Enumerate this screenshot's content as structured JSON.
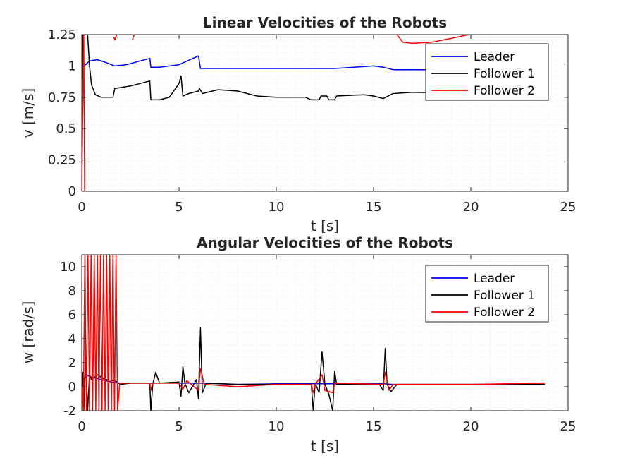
{
  "chart_data": [
    {
      "type": "line",
      "title": "Linear Velocities of the Robots",
      "xlabel": "t [s]",
      "ylabel": "v [m/s]",
      "xlim": [
        0,
        25
      ],
      "ylim": [
        0,
        1.25
      ],
      "xticks": [
        "0",
        "5",
        "10",
        "15",
        "20",
        "25"
      ],
      "yticks": [
        "0",
        "0.25",
        "0.5",
        "0.75",
        "1",
        "1.25"
      ],
      "grid": true,
      "legend": "top-right",
      "series": [
        {
          "name": "Leader",
          "color": "#0000ff",
          "points": [
            [
              0,
              0.6
            ],
            [
              0.05,
              1.0
            ],
            [
              0.1,
              1.02
            ],
            [
              0.2,
              1.01
            ],
            [
              0.4,
              1.04
            ],
            [
              0.8,
              1.05
            ],
            [
              1.2,
              1.03
            ],
            [
              1.7,
              1.0
            ],
            [
              2.3,
              1.01
            ],
            [
              3.0,
              1.04
            ],
            [
              3.5,
              1.06
            ],
            [
              3.55,
              0.99
            ],
            [
              4.0,
              0.99
            ],
            [
              5.0,
              1.01
            ],
            [
              6.0,
              1.08
            ],
            [
              6.1,
              0.98
            ],
            [
              8,
              0.98
            ],
            [
              10,
              0.98
            ],
            [
              12,
              0.98
            ],
            [
              13,
              0.98
            ],
            [
              14,
              0.99
            ],
            [
              15,
              1.0
            ],
            [
              15.5,
              0.99
            ],
            [
              16,
              0.97
            ],
            [
              20,
              0.97
            ]
          ]
        },
        {
          "name": "Follower 1",
          "color": "#000000",
          "points": [
            [
              0,
              0
            ],
            [
              0.05,
              1.25
            ],
            [
              0.3,
              1.25
            ],
            [
              0.4,
              1.0
            ],
            [
              0.5,
              0.85
            ],
            [
              0.7,
              0.77
            ],
            [
              1.0,
              0.75
            ],
            [
              1.6,
              0.75
            ],
            [
              1.7,
              0.82
            ],
            [
              2.5,
              0.84
            ],
            [
              3.5,
              0.88
            ],
            [
              3.55,
              0.73
            ],
            [
              4.0,
              0.73
            ],
            [
              4.5,
              0.75
            ],
            [
              5.0,
              0.86
            ],
            [
              5.1,
              0.92
            ],
            [
              5.2,
              0.76
            ],
            [
              5.5,
              0.78
            ],
            [
              6.0,
              0.8
            ],
            [
              6.05,
              0.82
            ],
            [
              6.2,
              0.78
            ],
            [
              7.0,
              0.81
            ],
            [
              8.0,
              0.8
            ],
            [
              8.5,
              0.78
            ],
            [
              9.0,
              0.76
            ],
            [
              10,
              0.75
            ],
            [
              11.5,
              0.75
            ],
            [
              11.8,
              0.73
            ],
            [
              12.2,
              0.73
            ],
            [
              12.3,
              0.76
            ],
            [
              12.6,
              0.76
            ],
            [
              12.7,
              0.73
            ],
            [
              13,
              0.73
            ],
            [
              13.1,
              0.76
            ],
            [
              14.5,
              0.77
            ],
            [
              15,
              0.76
            ],
            [
              15.5,
              0.74
            ],
            [
              16,
              0.78
            ],
            [
              17,
              0.79
            ],
            [
              20,
              0.78
            ],
            [
              22,
              0.73
            ],
            [
              23.8,
              0.73
            ]
          ]
        },
        {
          "name": "Follower 2",
          "color": "#ff0000",
          "points": [
            [
              0,
              0
            ],
            [
              0.1,
              1.25
            ],
            [
              0.15,
              0
            ]
          ]
        },
        {
          "name": "",
          "color": "#ff0000",
          "points": [
            [
              1.65,
              1.23
            ],
            [
              1.7,
              1.21
            ],
            [
              1.8,
              1.25
            ]
          ]
        },
        {
          "name": "",
          "color": "#ff0000",
          "points": [
            [
              2.6,
              1.21
            ],
            [
              2.7,
              1.25
            ]
          ]
        },
        {
          "name": "",
          "color": "#ff0000",
          "points": [
            [
              16.2,
              1.25
            ],
            [
              16.5,
              1.19
            ],
            [
              17.0,
              1.18
            ],
            [
              18.0,
              1.19
            ],
            [
              19.0,
              1.22
            ],
            [
              19.9,
              1.25
            ]
          ]
        }
      ]
    },
    {
      "type": "line",
      "title": "Angular Velocities of the Robots",
      "xlabel": "t [s]",
      "ylabel": "w [rad/s]",
      "xlim": [
        0,
        25
      ],
      "ylim": [
        -2,
        11
      ],
      "xticks": [
        "0",
        "5",
        "10",
        "15",
        "20",
        "25"
      ],
      "yticks": [
        "-2",
        "0",
        "2",
        "4",
        "6",
        "8",
        "10"
      ],
      "grid": true,
      "legend": "top-right",
      "series": [
        {
          "name": "Leader",
          "color": "#0000ff",
          "points": [
            [
              0,
              0
            ],
            [
              0.2,
              1.0
            ],
            [
              0.5,
              0.8
            ],
            [
              1.0,
              0.6
            ],
            [
              1.5,
              0.4
            ],
            [
              2.0,
              0.3
            ],
            [
              3.5,
              0.3
            ],
            [
              3.6,
              0.3
            ],
            [
              5,
              0.3
            ],
            [
              6,
              0.3
            ],
            [
              6.2,
              0.3
            ],
            [
              8,
              0.2
            ],
            [
              10,
              0.25
            ],
            [
              12,
              0.25
            ],
            [
              14,
              0.25
            ],
            [
              15.5,
              0.25
            ],
            [
              16,
              0.2
            ],
            [
              20,
              0.2
            ],
            [
              23.8,
              0.2
            ]
          ]
        },
        {
          "name": "Follower 1",
          "color": "#000000",
          "points": [
            [
              0,
              0
            ],
            [
              0.05,
              1.2
            ],
            [
              0.1,
              -2
            ],
            [
              0.2,
              2.5
            ],
            [
              0.3,
              -2
            ],
            [
              0.4,
              1.0
            ],
            [
              0.5,
              0.6
            ],
            [
              0.8,
              1.0
            ],
            [
              1.2,
              0.6
            ],
            [
              1.7,
              0.5
            ],
            [
              2.0,
              0.2
            ],
            [
              2.5,
              0.3
            ],
            [
              3.5,
              0.3
            ],
            [
              3.55,
              -2
            ],
            [
              3.65,
              0.2
            ],
            [
              3.8,
              1.2
            ],
            [
              4.0,
              0.3
            ],
            [
              5.0,
              0.4
            ],
            [
              5.1,
              -0.8
            ],
            [
              5.2,
              1.7
            ],
            [
              5.3,
              0.3
            ],
            [
              5.5,
              -0.5
            ],
            [
              5.9,
              0.6
            ],
            [
              6.0,
              -1.0
            ],
            [
              6.1,
              4.9
            ],
            [
              6.2,
              -0.5
            ],
            [
              6.4,
              0.3
            ],
            [
              8,
              0.2
            ],
            [
              10,
              0.2
            ],
            [
              11.8,
              0.2
            ],
            [
              11.9,
              -2
            ],
            [
              12.0,
              0.3
            ],
            [
              12.2,
              -0.5
            ],
            [
              12.35,
              2.9
            ],
            [
              12.5,
              0.2
            ],
            [
              12.7,
              -0.6
            ],
            [
              12.9,
              -2
            ],
            [
              13.0,
              1.3
            ],
            [
              13.1,
              0.2
            ],
            [
              15.3,
              0.2
            ],
            [
              15.5,
              -0.3
            ],
            [
              15.6,
              3.2
            ],
            [
              15.7,
              0.2
            ],
            [
              15.9,
              -0.4
            ],
            [
              16.2,
              0.2
            ],
            [
              20,
              0.2
            ],
            [
              23.8,
              0.2
            ]
          ]
        },
        {
          "name": "Follower 2",
          "color": "#ff0000",
          "points": [
            [
              0,
              0
            ],
            [
              0.08,
              -2
            ],
            [
              0.16,
              11
            ],
            [
              0.24,
              -2
            ],
            [
              0.32,
              11
            ],
            [
              0.4,
              -2
            ],
            [
              0.48,
              11
            ],
            [
              0.56,
              -2
            ],
            [
              0.64,
              11
            ],
            [
              0.72,
              -2
            ],
            [
              0.8,
              11
            ],
            [
              0.88,
              -2
            ],
            [
              0.96,
              11
            ],
            [
              1.04,
              -2
            ],
            [
              1.12,
              11
            ],
            [
              1.2,
              -2
            ],
            [
              1.28,
              11
            ],
            [
              1.36,
              -2
            ],
            [
              1.44,
              11
            ],
            [
              1.52,
              -2
            ],
            [
              1.6,
              11
            ],
            [
              1.68,
              -2
            ],
            [
              1.76,
              11
            ],
            [
              1.84,
              -2
            ],
            [
              1.95,
              0.3
            ],
            [
              3.5,
              0.3
            ],
            [
              3.55,
              -0.3
            ],
            [
              3.65,
              0.3
            ],
            [
              5.0,
              0.3
            ],
            [
              5.2,
              -0.2
            ],
            [
              5.4,
              0.5
            ],
            [
              6.0,
              -0.3
            ],
            [
              6.1,
              1.5
            ],
            [
              6.3,
              0.2
            ],
            [
              8,
              0.0
            ],
            [
              10,
              0.2
            ],
            [
              11.8,
              0.2
            ],
            [
              11.9,
              -0.5
            ],
            [
              12.0,
              0.2
            ],
            [
              12.35,
              1.0
            ],
            [
              12.5,
              -0.3
            ],
            [
              12.9,
              -0.5
            ],
            [
              13.0,
              0.3
            ],
            [
              15.5,
              0.2
            ],
            [
              15.6,
              1.2
            ],
            [
              15.8,
              -0.3
            ],
            [
              16,
              0.2
            ],
            [
              20,
              0.2
            ],
            [
              23.8,
              0.3
            ]
          ]
        }
      ]
    }
  ]
}
